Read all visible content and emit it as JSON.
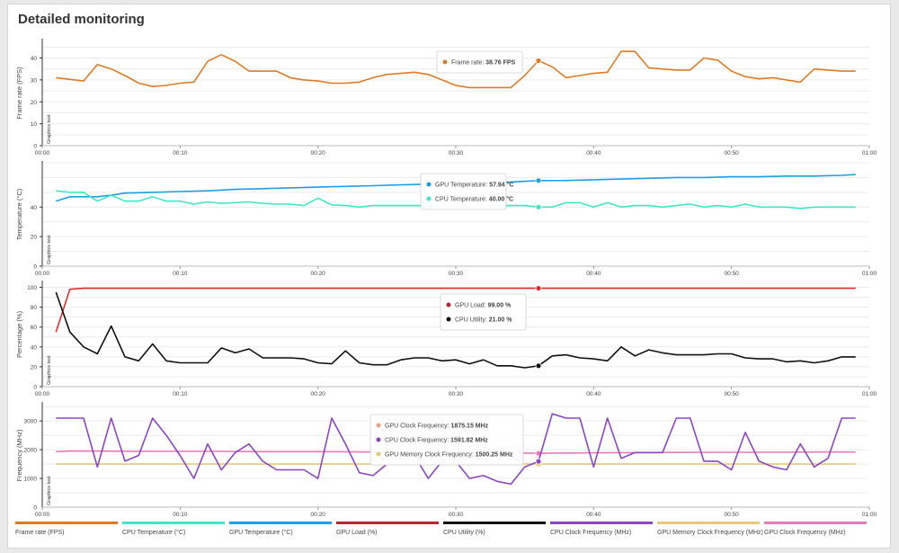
{
  "title": "Detailed monitoring",
  "legend": [
    {
      "label": "Frame rate (FPS)",
      "color": "#e07b24"
    },
    {
      "label": "CPU Temperature (°C)",
      "color": "#3ee8c6"
    },
    {
      "label": "GPU Temperature (°C)",
      "color": "#1e9ee6"
    },
    {
      "label": "GPU Load (%)",
      "color": "#b3282d"
    },
    {
      "label": "CPU Utility (%)",
      "color": "#111111"
    },
    {
      "label": "CPU Clock Frequency (MHz)",
      "color": "#8c46c4"
    },
    {
      "label": "GPU Memory Clock Frequency (MHz)",
      "color": "#e6c878"
    },
    {
      "label": "GPU Clock Frequency (MHz)",
      "color": "#e87ab8"
    }
  ],
  "chart_data": [
    {
      "type": "line",
      "ylabel": "Frame rate (FPS)",
      "side_label": "Graphics test",
      "yticks": [
        0,
        10,
        20,
        30,
        40
      ],
      "ylim": [
        0,
        48
      ],
      "xticks": [
        "00:00",
        "00:10",
        "00:20",
        "00:30",
        "00:40",
        "00:50",
        "01:00"
      ],
      "xlim": [
        0,
        60
      ],
      "cursor_x": 36,
      "series": [
        {
          "name": "Frame rate",
          "color": "#e07b24",
          "x": [
            1,
            3,
            4,
            5,
            6,
            7,
            8,
            9,
            10,
            11,
            12,
            13,
            14,
            15,
            16,
            17,
            18,
            19,
            20,
            21,
            22,
            23,
            24,
            25,
            26,
            27,
            28,
            29,
            30,
            31,
            32,
            33,
            34,
            35,
            36,
            37,
            38,
            39,
            40,
            41,
            42,
            43,
            44,
            45,
            46,
            47,
            48,
            49,
            50,
            51,
            52,
            53,
            54,
            55,
            56,
            57,
            58,
            59
          ],
          "values": [
            31,
            29.5,
            37,
            35,
            32,
            28.5,
            27,
            27.5,
            28.5,
            29,
            38.5,
            41.5,
            38.5,
            34,
            34,
            34,
            31,
            30,
            29.5,
            28.5,
            28.5,
            29,
            31,
            32.5,
            33,
            33.5,
            32.5,
            30,
            27.5,
            26.5,
            26.5,
            26.5,
            26.5,
            32,
            38.76,
            36,
            31,
            32,
            33,
            33.5,
            43,
            43,
            35.5,
            35,
            34.5,
            34.5,
            40,
            39,
            34,
            31.5,
            30.5,
            31,
            30,
            29,
            35,
            34.5,
            34,
            34
          ]
        }
      ],
      "tooltip": [
        {
          "label": "Frame rate:",
          "value": "38.76 FPS",
          "color": "#e07b24"
        }
      ]
    },
    {
      "type": "line",
      "ylabel": "Temperature (°C)",
      "side_label": "Graphics test",
      "yticks": [
        0,
        20,
        40
      ],
      "ylim": [
        0,
        70
      ],
      "xticks": [
        "00:00",
        "00:10",
        "00:20",
        "00:30",
        "00:40",
        "00:50",
        "01:00"
      ],
      "xlim": [
        0,
        60
      ],
      "cursor_x": 36,
      "series": [
        {
          "name": "GPU Temperature",
          "color": "#1e9ee6",
          "x": [
            1,
            2,
            4,
            5,
            6,
            8,
            10,
            12,
            14,
            16,
            18,
            20,
            22,
            24,
            26,
            28,
            30,
            32,
            34,
            36,
            38,
            40,
            42,
            44,
            46,
            48,
            50,
            52,
            54,
            56,
            58,
            59
          ],
          "values": [
            44,
            47,
            47,
            48,
            49.5,
            50,
            50.5,
            51,
            52,
            52.5,
            53,
            53.5,
            54,
            54.5,
            55,
            55.5,
            56,
            56.5,
            57,
            57.94,
            58,
            58.5,
            59,
            59.5,
            60,
            60,
            60.5,
            60.5,
            61,
            61,
            61.5,
            62
          ]
        },
        {
          "name": "CPU Temperature",
          "color": "#3ee8c6",
          "x": [
            1,
            2,
            3,
            4,
            5,
            6,
            7,
            8,
            9,
            10,
            11,
            12,
            13,
            14,
            15,
            16,
            17,
            18,
            19,
            20,
            21,
            22,
            23,
            24,
            25,
            26,
            27,
            28,
            29,
            30,
            31,
            32,
            33,
            34,
            35,
            36,
            37,
            38,
            39,
            40,
            41,
            42,
            43,
            44,
            45,
            46,
            47,
            48,
            49,
            50,
            51,
            52,
            53,
            54,
            55,
            56,
            57,
            58,
            59
          ],
          "values": [
            51,
            50,
            50,
            44,
            48,
            44,
            44,
            47,
            44,
            44,
            42,
            43.5,
            42.5,
            43,
            43.5,
            42.5,
            42,
            42,
            41,
            46,
            41.5,
            41,
            40,
            41,
            41,
            41,
            41,
            41,
            41,
            41,
            41,
            41,
            41,
            41,
            41,
            40,
            40,
            43,
            43,
            40,
            43,
            40,
            41,
            41,
            40,
            41,
            42,
            40,
            41,
            40,
            42,
            40,
            40,
            40,
            39,
            40,
            40,
            40,
            40
          ]
        }
      ],
      "tooltip": [
        {
          "label": "GPU Temperature:",
          "value": "57.94 °C",
          "color": "#1e9ee6"
        },
        {
          "label": "CPU Temperature:",
          "value": "40.00 °C",
          "color": "#3ee8c6"
        }
      ]
    },
    {
      "type": "line",
      "ylabel": "Percentage (%)",
      "side_label": "Graphics test",
      "yticks": [
        0,
        20,
        40,
        60,
        80,
        100
      ],
      "ylim": [
        0,
        105
      ],
      "xticks": [
        "00:00",
        "00:10",
        "00:20",
        "00:30",
        "00:40",
        "00:50",
        "01:00"
      ],
      "xlim": [
        0,
        60
      ],
      "cursor_x": 36,
      "series": [
        {
          "name": "GPU Load",
          "color": "#d9312e",
          "x": [
            1,
            2,
            3,
            6,
            10,
            20,
            30,
            36,
            40,
            50,
            59
          ],
          "values": [
            55,
            98,
            99,
            99,
            99,
            99,
            99,
            99,
            99,
            99,
            99
          ]
        },
        {
          "name": "CPU Utility",
          "color": "#111111",
          "x": [
            1,
            2,
            3,
            4,
            5,
            6,
            7,
            8,
            9,
            10,
            11,
            12,
            13,
            14,
            15,
            16,
            17,
            18,
            19,
            20,
            21,
            22,
            23,
            24,
            25,
            26,
            27,
            28,
            29,
            30,
            31,
            32,
            33,
            34,
            35,
            36,
            37,
            38,
            39,
            40,
            41,
            42,
            43,
            44,
            45,
            46,
            47,
            48,
            49,
            50,
            51,
            52,
            53,
            54,
            55,
            56,
            57,
            58,
            59
          ],
          "values": [
            95,
            55,
            40,
            33,
            61,
            30,
            26,
            43,
            26,
            24,
            24,
            24,
            39,
            34,
            38,
            29,
            29,
            29,
            28,
            24,
            23,
            36,
            24,
            22,
            22,
            27,
            29,
            29,
            26,
            27,
            23,
            27,
            21,
            21,
            19,
            21,
            31,
            32,
            29,
            28,
            26,
            40,
            31,
            37,
            34,
            32,
            32,
            32,
            33,
            33,
            29,
            28,
            28,
            25,
            26,
            24,
            26,
            30,
            30
          ]
        }
      ],
      "tooltip": [
        {
          "label": "GPU Load:",
          "value": "99.00 %",
          "color": "#b3282d"
        },
        {
          "label": "CPU Utility:",
          "value": "21.00 %",
          "color": "#111111"
        }
      ]
    },
    {
      "type": "line",
      "ylabel": "Frequency (MHz)",
      "side_label": "Graphics test",
      "yticks": [
        1000,
        2000,
        3000
      ],
      "ylim": [
        0,
        3600
      ],
      "xticks": [
        "00:00",
        "00:10",
        "00:20",
        "00:30",
        "00:40",
        "00:50",
        "01:00"
      ],
      "xlim": [
        0,
        60
      ],
      "cursor_x": 36,
      "series": [
        {
          "name": "GPU Memory Clock Frequency",
          "color": "#e6c878",
          "x": [
            1,
            10,
            20,
            30,
            36,
            40,
            50,
            59
          ],
          "values": [
            1500,
            1500,
            1500,
            1500,
            1500.25,
            1500,
            1500,
            1500
          ]
        },
        {
          "name": "GPU Clock Frequency",
          "color": "#e87ab8",
          "x": [
            1,
            2,
            4,
            8,
            12,
            16,
            20,
            24,
            28,
            32,
            36,
            40,
            44,
            48,
            52,
            56,
            59
          ],
          "values": [
            1930,
            1950,
            1950,
            1940,
            1940,
            1930,
            1930,
            1920,
            1910,
            1900,
            1875.15,
            1890,
            1900,
            1910,
            1910,
            1920,
            1920
          ]
        },
        {
          "name": "CPU Clock Frequency",
          "color": "#8c46c4",
          "x": [
            1,
            2,
            3,
            4,
            5,
            6,
            7,
            8,
            9,
            10,
            11,
            12,
            13,
            14,
            15,
            16,
            17,
            18,
            19,
            20,
            21,
            22,
            23,
            24,
            25,
            26,
            27,
            28,
            29,
            30,
            31,
            32,
            33,
            34,
            35,
            36,
            37,
            38,
            39,
            40,
            41,
            42,
            43,
            44,
            45,
            46,
            47,
            48,
            49,
            50,
            51,
            52,
            53,
            54,
            55,
            56,
            57,
            58,
            59
          ],
          "values": [
            3100,
            3100,
            3100,
            1400,
            3100,
            1600,
            1800,
            3100,
            2500,
            1800,
            1000,
            2200,
            1300,
            1900,
            2200,
            1600,
            1300,
            1300,
            1300,
            1000,
            3100,
            2200,
            1200,
            1100,
            1500,
            2200,
            1800,
            1000,
            1600,
            1600,
            1000,
            1100,
            900,
            800,
            1400,
            1591.82,
            3250,
            3100,
            3100,
            1400,
            3100,
            1700,
            1900,
            1900,
            1900,
            3100,
            3100,
            1600,
            1600,
            1300,
            2600,
            1600,
            1400,
            1300,
            2200,
            1400,
            1700,
            3100,
            3100
          ]
        }
      ],
      "tooltip": [
        {
          "label": "GPU Clock Frequency:",
          "value": "1875.15 MHz",
          "color": "#e8a07a"
        },
        {
          "label": "CPU Clock Frequency:",
          "value": "1591.82 MHz",
          "color": "#8c46c4"
        },
        {
          "label": "GPU Memory Clock Frequency:",
          "value": "1500.25 MHz",
          "color": "#e6c878"
        }
      ]
    }
  ]
}
